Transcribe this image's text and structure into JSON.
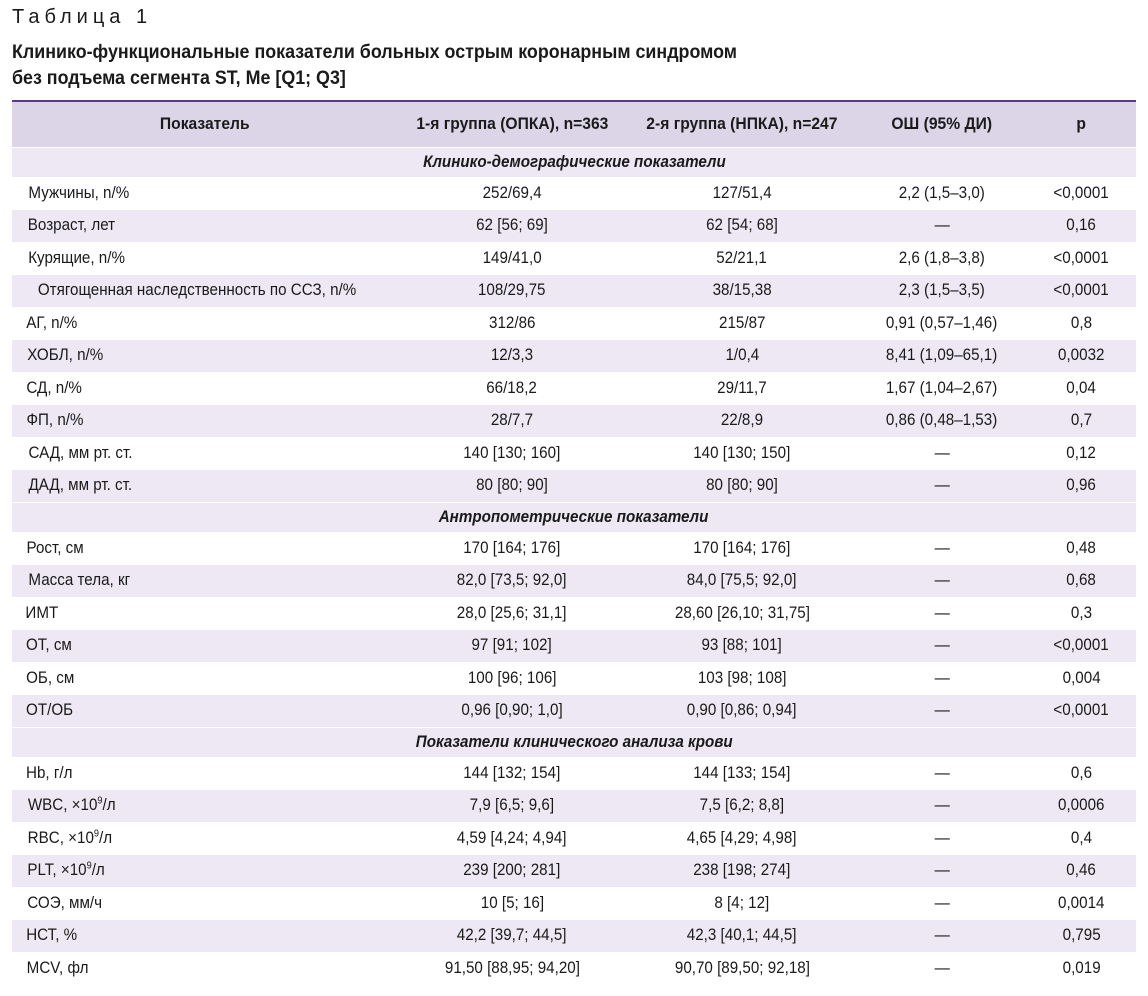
{
  "label": "Таблица 1",
  "title_line1": "Клинико-функциональные показатели больных острым коронарным синдромом",
  "title_line2": "без подъема сегмента ST, Me [Q1; Q3]",
  "columns": [
    "Показатель",
    "1-я группа (ОПКА), n=363",
    "2-я группа (НПКА), n=247",
    "ОШ (95% ДИ)",
    "p"
  ],
  "sections": [
    {
      "title": "Клинико-демографические показатели",
      "rows": [
        {
          "name": "Мужчины, n/%",
          "g1": "252/69,4",
          "g2": "127/51,4",
          "or": "2,2 (1,5–3,0)",
          "p": "<0,0001"
        },
        {
          "name": "Возраст, лет",
          "g1": "62 [56; 69]",
          "g2": "62 [54; 68]",
          "or": "—",
          "p": "0,16"
        },
        {
          "name": "Курящие, n/%",
          "g1": "149/41,0",
          "g2": "52/21,1",
          "or": "2,6 (1,8–3,8)",
          "p": "<0,0001"
        },
        {
          "name": "Отягощенная наследственность по ССЗ, n/%",
          "g1": "108/29,75",
          "g2": "38/15,38",
          "or": "2,3 (1,5–3,5)",
          "p": "<0,0001"
        },
        {
          "name": "АГ, n/%",
          "g1": "312/86",
          "g2": "215/87",
          "or": "0,91 (0,57–1,46)",
          "p": "0,8"
        },
        {
          "name": "ХОБЛ, n/%",
          "g1": "12/3,3",
          "g2": "1/0,4",
          "or": "8,41 (1,09–65,1)",
          "p": "0,0032"
        },
        {
          "name": "СД, n/%",
          "g1": "66/18,2",
          "g2": "29/11,7",
          "or": "1,67 (1,04–2,67)",
          "p": "0,04"
        },
        {
          "name": "ФП, n/%",
          "g1": "28/7,7",
          "g2": "22/8,9",
          "or": "0,86 (0,48–1,53)",
          "p": "0,7"
        },
        {
          "name": "САД, мм рт. ст.",
          "g1": "140 [130; 160]",
          "g2": "140 [130; 150]",
          "or": "—",
          "p": "0,12"
        },
        {
          "name": "ДАД, мм рт. ст.",
          "g1": "80 [80; 90]",
          "g2": "80 [80; 90]",
          "or": "—",
          "p": "0,96"
        }
      ]
    },
    {
      "title": "Антропометрические показатели",
      "rows": [
        {
          "name": "Рост, см",
          "g1": "170 [164; 176]",
          "g2": "170 [164; 176]",
          "or": "—",
          "p": "0,48"
        },
        {
          "name": "Масса тела, кг",
          "g1": "82,0 [73,5; 92,0]",
          "g2": "84,0 [75,5; 92,0]",
          "or": "—",
          "p": "0,68"
        },
        {
          "name": "ИМТ",
          "g1": "28,0 [25,6; 31,1]",
          "g2": "28,60 [26,10; 31,75]",
          "or": "—",
          "p": "0,3"
        },
        {
          "name": "ОТ, см",
          "g1": "97 [91; 102]",
          "g2": "93 [88; 101]",
          "or": "—",
          "p": "<0,0001"
        },
        {
          "name": "ОБ, см",
          "g1": "100 [96; 106]",
          "g2": "103 [98; 108]",
          "or": "—",
          "p": "0,004"
        },
        {
          "name": "ОТ/ОБ",
          "g1": "0,96 [0,90; 1,0]",
          "g2": "0,90 [0,86; 0,94]",
          "or": "—",
          "p": "<0,0001"
        }
      ]
    },
    {
      "title": "Показатели клинического анализа крови",
      "rows": [
        {
          "name": "Hb, г/л",
          "g1": "144 [132; 154]",
          "g2": "144 [133; 154]",
          "or": "—",
          "p": "0,6"
        },
        {
          "name": "WBC, ×10",
          "sup": "9",
          "name_suffix": "/л",
          "g1": "7,9 [6,5; 9,6]",
          "g2": "7,5 [6,2; 8,8]",
          "or": "—",
          "p": "0,0006"
        },
        {
          "name": "RBC, ×10",
          "sup": "9",
          "name_suffix": "/л",
          "g1": "4,59 [4,24; 4,94]",
          "g2": "4,65 [4,29; 4,98]",
          "or": "—",
          "p": "0,4"
        },
        {
          "name": "PLT, ×10",
          "sup": "9",
          "name_suffix": "/л",
          "g1": "239 [200; 281]",
          "g2": "238 [198; 274]",
          "or": "—",
          "p": "0,46"
        },
        {
          "name": "СОЭ, мм/ч",
          "g1": "10 [5; 16]",
          "g2": "8 [4; 12]",
          "or": "—",
          "p": "0,0014"
        },
        {
          "name": "НСТ, %",
          "g1": "42,2 [39,7; 44,5]",
          "g2": "42,3 [40,1; 44,5]",
          "or": "—",
          "p": "0,795"
        },
        {
          "name": "MCV, фл",
          "g1": "91,50 [88,95; 94,20]",
          "g2": "90,70 [89,50; 92,18]",
          "or": "—",
          "p": "0,019"
        }
      ]
    }
  ]
}
